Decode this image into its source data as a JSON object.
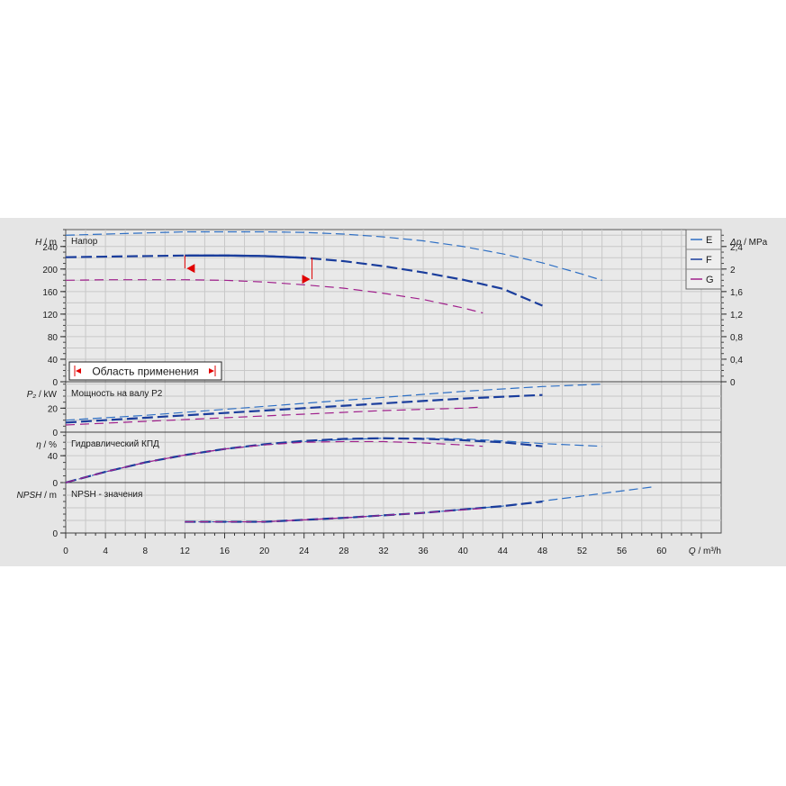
{
  "chart_data": {
    "type": "line",
    "x_axis": {
      "label_var": "Q",
      "label_unit": "/ m³/h",
      "ticks": [
        "0",
        "4",
        "8",
        "12",
        "16",
        "20",
        "24",
        "28",
        "32",
        "36",
        "40",
        "44",
        "48",
        "52",
        "56",
        "60"
      ],
      "range": [
        0,
        66
      ]
    },
    "legend": {
      "placement": "top-right",
      "entries": [
        {
          "label": "E",
          "color": "#2e6fc4"
        },
        {
          "label": "F",
          "color": "#1a3d9c"
        },
        {
          "label": "G",
          "color": "#a0208c"
        }
      ]
    },
    "colors": {
      "E": "#2e6fc4",
      "F": "#1a3d9c",
      "G": "#a0208c",
      "range_marker": "#e00000"
    },
    "panels": [
      {
        "id": "head",
        "title": "Напор",
        "ylabel_var": "H",
        "ylabel_unit": "/ m",
        "ylim": [
          0,
          270
        ],
        "yticks": [
          "0",
          "40",
          "80",
          "120",
          "160",
          "200",
          "240"
        ],
        "right_axis": {
          "label_var": "Δp",
          "label_unit": "/ MPa",
          "ticks": [
            "0",
            "0,4",
            "0,8",
            "1,2",
            "1,6",
            "2",
            "2,4"
          ],
          "values": [
            0,
            0.4,
            0.8,
            1.2,
            1.6,
            2.0,
            2.4
          ]
        },
        "series": [
          {
            "key": "E",
            "points": [
              [
                0,
                260
              ],
              [
                8,
                264
              ],
              [
                12,
                266
              ],
              [
                16,
                266
              ],
              [
                20,
                266
              ],
              [
                24,
                265
              ],
              [
                28,
                262
              ],
              [
                32,
                257
              ],
              [
                36,
                250
              ],
              [
                40,
                240
              ],
              [
                44,
                227
              ],
              [
                48,
                211
              ],
              [
                52,
                191
              ],
              [
                54,
                180
              ]
            ]
          },
          {
            "key": "F",
            "points": [
              [
                0,
                221
              ],
              [
                4,
                222
              ],
              [
                8,
                223
              ],
              [
                12,
                224
              ],
              [
                16,
                224
              ],
              [
                20,
                223
              ],
              [
                24,
                220
              ],
              [
                28,
                214
              ],
              [
                32,
                205
              ],
              [
                36,
                194
              ],
              [
                40,
                181
              ],
              [
                44,
                165
              ],
              [
                48,
                135
              ]
            ]
          },
          {
            "key": "G",
            "points": [
              [
                0,
                180
              ],
              [
                4,
                181
              ],
              [
                8,
                181
              ],
              [
                12,
                181
              ],
              [
                16,
                180
              ],
              [
                20,
                177
              ],
              [
                24,
                172
              ],
              [
                28,
                166
              ],
              [
                32,
                157
              ],
              [
                36,
                146
              ],
              [
                40,
                131
              ],
              [
                42,
                122
              ]
            ]
          }
        ],
        "operating_range": {
          "label": "Область применения",
          "q_min": 12,
          "q_max": 24.8,
          "h_min": 190,
          "h_max": 217
        }
      },
      {
        "id": "power",
        "title": "Мощность на валу P2",
        "ylabel_var": "P₂",
        "ylabel_unit": "/ kW",
        "ylim": [
          0,
          42
        ],
        "yticks": [
          "0",
          "20"
        ],
        "series": [
          {
            "key": "E",
            "points": [
              [
                0,
                10
              ],
              [
                8,
                14
              ],
              [
                16,
                19
              ],
              [
                24,
                24
              ],
              [
                32,
                29
              ],
              [
                40,
                34
              ],
              [
                48,
                38
              ],
              [
                54,
                40
              ]
            ]
          },
          {
            "key": "F",
            "points": [
              [
                0,
                8
              ],
              [
                8,
                12
              ],
              [
                16,
                16
              ],
              [
                24,
                20
              ],
              [
                32,
                24
              ],
              [
                40,
                28
              ],
              [
                48,
                31
              ]
            ]
          },
          {
            "key": "G",
            "points": [
              [
                0,
                6
              ],
              [
                8,
                9
              ],
              [
                16,
                12
              ],
              [
                24,
                15
              ],
              [
                32,
                18
              ],
              [
                40,
                20
              ],
              [
                42,
                21
              ]
            ]
          }
        ]
      },
      {
        "id": "efficiency",
        "title": "Гидравлический КПД",
        "ylabel_var": "η",
        "ylabel_unit": "/ %",
        "ylim": [
          0,
          75
        ],
        "yticks": [
          "0",
          "40"
        ],
        "series": [
          {
            "key": "E",
            "points": [
              [
                0,
                0
              ],
              [
                4,
                16
              ],
              [
                8,
                30
              ],
              [
                12,
                41
              ],
              [
                16,
                50
              ],
              [
                20,
                56
              ],
              [
                24,
                61
              ],
              [
                28,
                64
              ],
              [
                32,
                66
              ],
              [
                36,
                66
              ],
              [
                40,
                65
              ],
              [
                44,
                62
              ],
              [
                48,
                58
              ],
              [
                54,
                54
              ]
            ]
          },
          {
            "key": "F",
            "points": [
              [
                0,
                0
              ],
              [
                4,
                16
              ],
              [
                8,
                30
              ],
              [
                12,
                41
              ],
              [
                16,
                50
              ],
              [
                20,
                57
              ],
              [
                24,
                62
              ],
              [
                28,
                65
              ],
              [
                32,
                66
              ],
              [
                36,
                65
              ],
              [
                40,
                63
              ],
              [
                44,
                60
              ],
              [
                48,
                54
              ]
            ]
          },
          {
            "key": "G",
            "points": [
              [
                0,
                0
              ],
              [
                4,
                16
              ],
              [
                8,
                30
              ],
              [
                12,
                41
              ],
              [
                16,
                50
              ],
              [
                20,
                56
              ],
              [
                24,
                60
              ],
              [
                28,
                61
              ],
              [
                32,
                61
              ],
              [
                36,
                59
              ],
              [
                40,
                56
              ],
              [
                42,
                54
              ]
            ]
          }
        ]
      },
      {
        "id": "npsh",
        "title": "NPSH - значения",
        "ylabel_var": "NPSH",
        "ylabel_unit": "/ m",
        "ylim": [
          0,
          9
        ],
        "yticks": [
          "0"
        ],
        "series": [
          {
            "key": "E",
            "points": [
              [
                12,
                2
              ],
              [
                20,
                2
              ],
              [
                28,
                2.7
              ],
              [
                36,
                3.6
              ],
              [
                44,
                4.8
              ],
              [
                52,
                6.6
              ],
              [
                59,
                8.2
              ]
            ]
          },
          {
            "key": "F",
            "points": [
              [
                12,
                2
              ],
              [
                20,
                2
              ],
              [
                28,
                2.7
              ],
              [
                36,
                3.6
              ],
              [
                44,
                4.8
              ],
              [
                48,
                5.6
              ]
            ]
          },
          {
            "key": "G",
            "points": [
              [
                12,
                2
              ],
              [
                20,
                2
              ],
              [
                28,
                2.7
              ],
              [
                36,
                3.6
              ],
              [
                42,
                4.4
              ]
            ]
          }
        ]
      }
    ]
  }
}
